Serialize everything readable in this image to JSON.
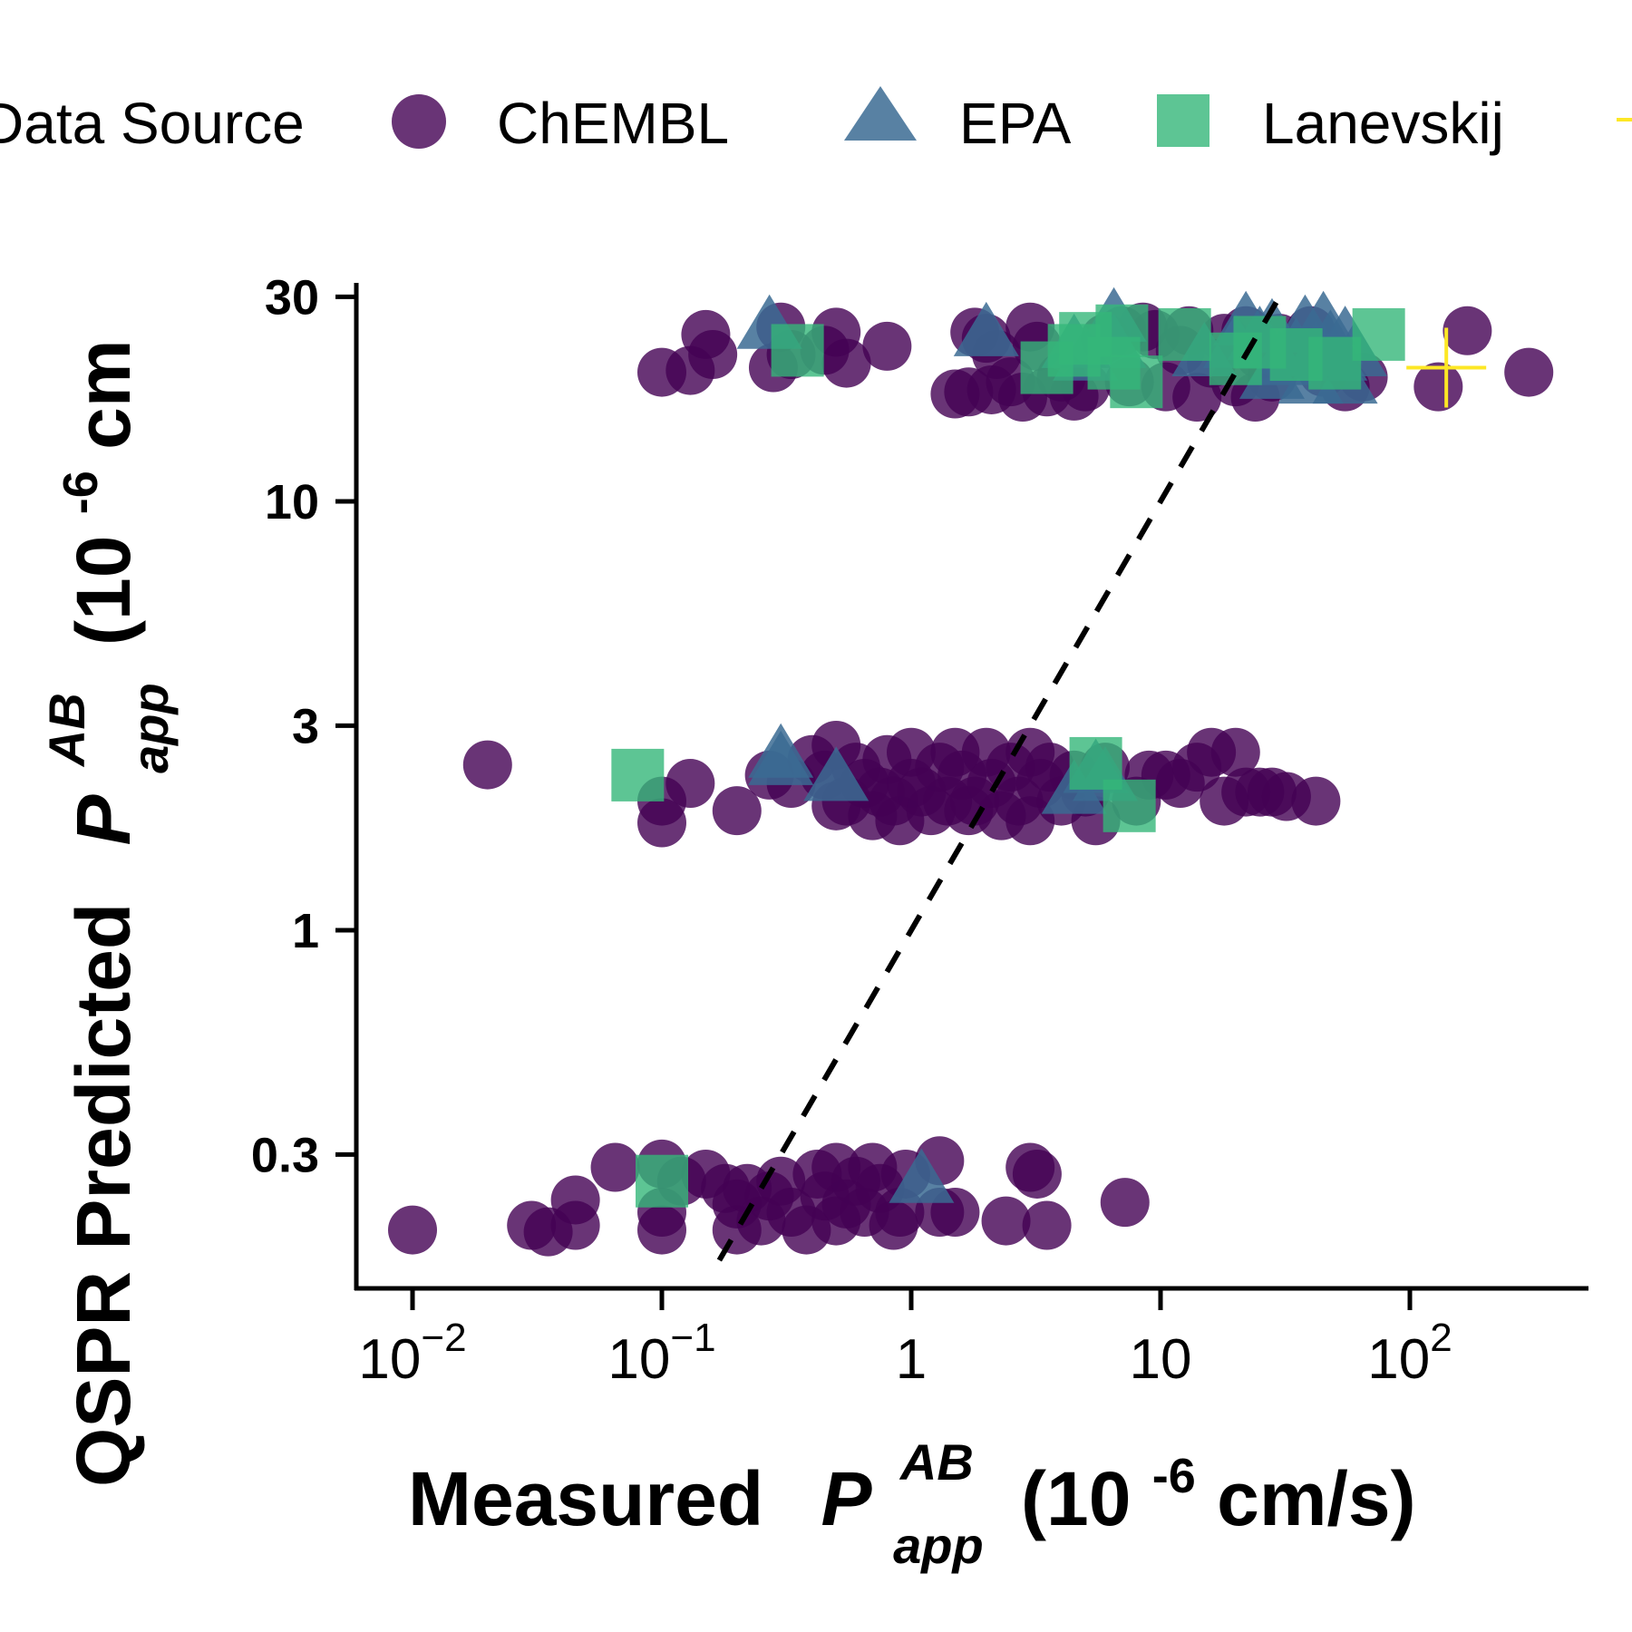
{
  "legend": {
    "title": "Data Source",
    "items": [
      {
        "label": "ChEMBL",
        "shape": "circle",
        "color": "#440154"
      },
      {
        "label": "EPA",
        "shape": "triangle",
        "color": "#3B6B93"
      },
      {
        "label": "Lanevskij",
        "shape": "square",
        "color": "#35B779"
      },
      {
        "label": "",
        "shape": "plus",
        "color": "#FDE725"
      }
    ]
  },
  "chart_data": {
    "type": "scatter",
    "x_scale": "log10",
    "y_scale": "log10",
    "xlim": [
      0.007,
      500
    ],
    "ylim": [
      0.17,
      31
    ],
    "x_ticks": [
      {
        "value": 0.01,
        "base": "10",
        "exp": "−2"
      },
      {
        "value": 0.1,
        "base": "10",
        "exp": "−1"
      },
      {
        "value": 1,
        "base": "1",
        "exp": ""
      },
      {
        "value": 10,
        "base": "10",
        "exp": ""
      },
      {
        "value": 100,
        "base": "10",
        "exp": "2"
      }
    ],
    "y_ticks": [
      {
        "value": 0.3,
        "label": "0.3"
      },
      {
        "value": 1,
        "label": "1"
      },
      {
        "value": 3,
        "label": "3"
      },
      {
        "value": 10,
        "label": "10"
      },
      {
        "value": 30,
        "label": "30"
      }
    ],
    "xlabel": {
      "main": "Measured",
      "symbol": "P",
      "sup": "AB",
      "sub": "app",
      "unit_open": "(10",
      "unit_exp": "-6",
      "unit_close": " cm/s)"
    },
    "ylabel": {
      "main": "QSPR Predicted",
      "symbol": "P",
      "sup": "AB",
      "sub": "app",
      "unit_open": "(10",
      "unit_exp": "-6",
      "unit_close": " cm"
    },
    "reference_line": {
      "style": "dashed",
      "slope": 1,
      "x_from": 0.17,
      "x_to": 30
    },
    "series": [
      {
        "name": "ChEMBL",
        "marker": "circle",
        "color": "#440154",
        "points": [
          [
            0.15,
            24.5
          ],
          [
            0.16,
            22.0
          ],
          [
            0.1,
            20.0
          ],
          [
            0.13,
            20.2
          ],
          [
            0.3,
            25.5
          ],
          [
            0.33,
            22.0
          ],
          [
            0.28,
            20.5
          ],
          [
            0.5,
            24.8
          ],
          [
            0.55,
            21.0
          ],
          [
            0.45,
            22.5
          ],
          [
            0.8,
            23.0
          ],
          [
            1.8,
            24.8
          ],
          [
            2.0,
            24.0
          ],
          [
            2.2,
            22.0
          ],
          [
            3.0,
            25.5
          ],
          [
            3.2,
            23.0
          ],
          [
            2.5,
            19.0
          ],
          [
            1.7,
            18.0
          ],
          [
            1.5,
            17.8
          ],
          [
            2.1,
            18.2
          ],
          [
            2.8,
            17.5
          ],
          [
            3.5,
            18.0
          ],
          [
            4.0,
            19.5
          ],
          [
            4.5,
            17.6
          ],
          [
            5.0,
            18.5
          ],
          [
            6.0,
            24.0
          ],
          [
            7.0,
            25.0
          ],
          [
            7.5,
            19.0
          ],
          [
            8.5,
            25.5
          ],
          [
            9.5,
            24.5
          ],
          [
            10.5,
            18.5
          ],
          [
            12.0,
            22.5
          ],
          [
            13.0,
            25.0
          ],
          [
            14.0,
            17.5
          ],
          [
            16.0,
            21.0
          ],
          [
            18.0,
            24.0
          ],
          [
            20.0,
            19.0
          ],
          [
            22.0,
            25.0
          ],
          [
            25.0,
            22.0
          ],
          [
            24.0,
            17.5
          ],
          [
            28.0,
            19.5
          ],
          [
            30.0,
            24.0
          ],
          [
            35.0,
            22.0
          ],
          [
            40.0,
            25.0
          ],
          [
            45.0,
            20.0
          ],
          [
            55.0,
            18.5
          ],
          [
            65.0,
            19.5
          ],
          [
            130.0,
            18.5
          ],
          [
            170.0,
            25.0
          ],
          [
            300.0,
            20.0
          ],
          [
            0.02,
            2.43
          ],
          [
            0.1,
            2.0
          ],
          [
            0.1,
            1.78
          ],
          [
            0.13,
            2.2
          ],
          [
            0.2,
            1.9
          ],
          [
            0.27,
            2.3
          ],
          [
            0.33,
            2.2
          ],
          [
            0.4,
            2.5
          ],
          [
            0.45,
            2.3
          ],
          [
            0.5,
            2.7
          ],
          [
            0.5,
            1.95
          ],
          [
            0.55,
            2.0
          ],
          [
            0.6,
            2.4
          ],
          [
            0.65,
            2.2
          ],
          [
            0.7,
            1.85
          ],
          [
            0.75,
            2.1
          ],
          [
            0.8,
            2.5
          ],
          [
            0.85,
            2.0
          ],
          [
            0.9,
            1.8
          ],
          [
            1.0,
            2.6
          ],
          [
            1.0,
            2.2
          ],
          [
            1.1,
            2.1
          ],
          [
            1.2,
            1.9
          ],
          [
            1.3,
            2.4
          ],
          [
            1.4,
            2.0
          ],
          [
            1.5,
            2.6
          ],
          [
            1.6,
            2.3
          ],
          [
            1.7,
            1.9
          ],
          [
            1.8,
            2.0
          ],
          [
            2.0,
            2.6
          ],
          [
            2.1,
            2.2
          ],
          [
            2.3,
            1.85
          ],
          [
            2.5,
            2.4
          ],
          [
            2.7,
            2.0
          ],
          [
            3.0,
            2.6
          ],
          [
            3.0,
            1.8
          ],
          [
            3.3,
            2.2
          ],
          [
            3.6,
            2.4
          ],
          [
            4.0,
            2.0
          ],
          [
            4.5,
            2.3
          ],
          [
            5.0,
            2.1
          ],
          [
            5.5,
            1.8
          ],
          [
            6.0,
            2.4
          ],
          [
            8.0,
            2.0
          ],
          [
            9.0,
            2.3
          ],
          [
            10.5,
            2.3
          ],
          [
            12.0,
            2.2
          ],
          [
            14.0,
            2.4
          ],
          [
            16.0,
            2.6
          ],
          [
            18.0,
            2.0
          ],
          [
            20.0,
            2.6
          ],
          [
            22.0,
            2.1
          ],
          [
            25.0,
            2.1
          ],
          [
            28.0,
            2.1
          ],
          [
            32.0,
            2.05
          ],
          [
            42.0,
            2.0
          ],
          [
            0.01,
            0.2
          ],
          [
            0.03,
            0.205
          ],
          [
            0.035,
            0.198
          ],
          [
            0.045,
            0.235
          ],
          [
            0.045,
            0.205
          ],
          [
            0.065,
            0.28
          ],
          [
            0.1,
            0.285
          ],
          [
            0.1,
            0.22
          ],
          [
            0.1,
            0.2
          ],
          [
            0.12,
            0.26
          ],
          [
            0.15,
            0.27
          ],
          [
            0.18,
            0.25
          ],
          [
            0.2,
            0.23
          ],
          [
            0.2,
            0.2
          ],
          [
            0.22,
            0.25
          ],
          [
            0.25,
            0.21
          ],
          [
            0.27,
            0.24
          ],
          [
            0.3,
            0.26
          ],
          [
            0.33,
            0.22
          ],
          [
            0.38,
            0.2
          ],
          [
            0.42,
            0.27
          ],
          [
            0.45,
            0.24
          ],
          [
            0.5,
            0.28
          ],
          [
            0.5,
            0.21
          ],
          [
            0.55,
            0.23
          ],
          [
            0.6,
            0.26
          ],
          [
            0.65,
            0.22
          ],
          [
            0.7,
            0.28
          ],
          [
            0.75,
            0.25
          ],
          [
            0.85,
            0.205
          ],
          [
            0.9,
            0.22
          ],
          [
            0.95,
            0.27
          ],
          [
            1.3,
            0.29
          ],
          [
            1.3,
            0.22
          ],
          [
            1.5,
            0.22
          ],
          [
            2.4,
            0.21
          ],
          [
            3.0,
            0.28
          ],
          [
            3.2,
            0.27
          ],
          [
            3.5,
            0.205
          ],
          [
            7.2,
            0.232
          ]
        ]
      },
      {
        "name": "EPA",
        "marker": "triangle",
        "color": "#3B6B93",
        "points": [
          [
            0.27,
            25.5
          ],
          [
            0.3,
            2.55
          ],
          [
            0.3,
            2.45
          ],
          [
            0.5,
            2.25
          ],
          [
            1.1,
            0.26
          ],
          [
            2.0,
            24.5
          ],
          [
            4.5,
            23.0
          ],
          [
            5.0,
            21.5
          ],
          [
            5.5,
            2.35
          ],
          [
            6.5,
            26.5
          ],
          [
            6.5,
            23.0
          ],
          [
            4.5,
            2.1
          ],
          [
            6.0,
            2.25
          ],
          [
            15.0,
            22.0
          ],
          [
            20.0,
            23.0
          ],
          [
            22.0,
            26.0
          ],
          [
            25.0,
            24.0
          ],
          [
            28.0,
            25.0
          ],
          [
            30.0,
            21.0
          ],
          [
            35.0,
            22.5
          ],
          [
            38.0,
            25.5
          ],
          [
            42.0,
            22.0
          ],
          [
            45.0,
            26.0
          ],
          [
            48.0,
            23.5
          ],
          [
            50.0,
            21.5
          ],
          [
            55.0,
            24.0
          ],
          [
            60.0,
            22.0
          ],
          [
            28.0,
            19.5
          ],
          [
            40.0,
            19.0
          ],
          [
            55.0,
            19.0
          ]
        ]
      },
      {
        "name": "Lanevskij",
        "marker": "square",
        "color": "#35B779",
        "points": [
          [
            0.35,
            22.5
          ],
          [
            0.08,
            2.3
          ],
          [
            0.1,
            0.26
          ],
          [
            3.5,
            20.5
          ],
          [
            5.0,
            24.0
          ],
          [
            6.5,
            21.0
          ],
          [
            7.0,
            25.0
          ],
          [
            8.0,
            19.0
          ],
          [
            12.5,
            24.5
          ],
          [
            5.5,
            2.45
          ],
          [
            7.5,
            1.95
          ],
          [
            20.0,
            21.5
          ],
          [
            25.0,
            23.5
          ],
          [
            35.0,
            22.0
          ],
          [
            50.0,
            21.0
          ],
          [
            75.0,
            24.5
          ],
          [
            4.5,
            22.5
          ]
        ]
      },
      {
        "name": "",
        "marker": "plus",
        "color": "#FDE725",
        "points": [
          [
            140.0,
            20.5
          ]
        ]
      }
    ]
  }
}
